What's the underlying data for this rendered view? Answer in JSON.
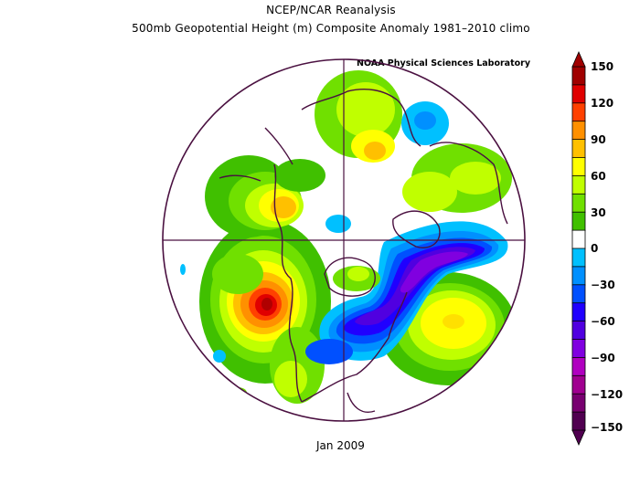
{
  "title": {
    "line1": "NCEP/NCAR Reanalysis",
    "line2": "500mb Geopotential Height (m) Composite Anomaly 1981–2010 climo",
    "credit": "NOAA Physical Sciences Laboratory"
  },
  "date_label": "Jan 2009",
  "colorbar": {
    "labels": [
      "150",
      "120",
      "90",
      "60",
      "30",
      "0",
      "−30",
      "−60",
      "−90",
      "−120",
      "−150"
    ],
    "colors_top_to_bottom": [
      "#a00000",
      "#e00000",
      "#ff4000",
      "#ff9000",
      "#ffc000",
      "#ffff00",
      "#c0ff00",
      "#70e000",
      "#40c000",
      "#ffffff",
      "#00c0ff",
      "#0090ff",
      "#0050ff",
      "#2000ff",
      "#5000e0",
      "#8000e0",
      "#b000c0",
      "#a00090",
      "#780070",
      "#500050"
    ]
  },
  "map": {
    "projection": "north-polar-stereographic",
    "anomaly_features": [
      {
        "name": "pacific-ridge",
        "sign": "positive",
        "peak": 150
      },
      {
        "name": "western-atlantic-trough",
        "sign": "negative",
        "peak": -120
      },
      {
        "name": "eastern-atlantic-ridge",
        "sign": "positive",
        "peak": 90
      },
      {
        "name": "siberian-ridge",
        "sign": "positive",
        "peak": 90
      },
      {
        "name": "europe-low",
        "sign": "negative",
        "peak": -30
      }
    ]
  }
}
